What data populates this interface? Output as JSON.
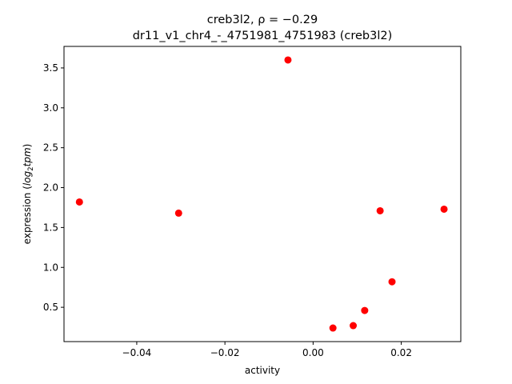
{
  "chart_data": {
    "type": "scatter",
    "title_line1": "creb3l2, ρ = −0.29",
    "title_line2": "dr11_v1_chr4_-_4751981_4751983 (creb3l2)",
    "xlabel": "activity",
    "ylabel_prefix": "expression (",
    "ylabel_log": "log",
    "ylabel_sub": "2",
    "ylabel_rest": "tpm",
    "ylabel_suffix": ")",
    "xlim": [
      -0.0565,
      0.0335
    ],
    "ylim": [
      0.07,
      3.77
    ],
    "x_ticks": [
      -0.04,
      -0.02,
      0.0,
      0.02
    ],
    "x_tick_labels": [
      "−0.04",
      "−0.02",
      "0.00",
      "0.02"
    ],
    "y_ticks": [
      0.5,
      1.0,
      1.5,
      2.0,
      2.5,
      3.0,
      3.5
    ],
    "y_tick_labels": [
      "0.5",
      "1.0",
      "1.5",
      "2.0",
      "2.5",
      "3.0",
      "3.5"
    ],
    "grid": false,
    "marker_color": "#ff0000",
    "points": [
      {
        "x": -0.053,
        "y": 1.82
      },
      {
        "x": -0.0305,
        "y": 1.68
      },
      {
        "x": -0.0057,
        "y": 3.6
      },
      {
        "x": 0.0045,
        "y": 0.24
      },
      {
        "x": 0.0091,
        "y": 0.27
      },
      {
        "x": 0.0117,
        "y": 0.46
      },
      {
        "x": 0.0152,
        "y": 1.71
      },
      {
        "x": 0.0179,
        "y": 0.82
      },
      {
        "x": 0.0297,
        "y": 1.73
      }
    ]
  }
}
